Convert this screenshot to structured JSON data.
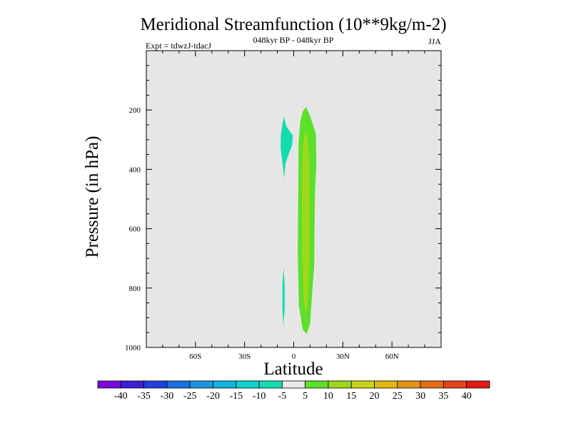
{
  "chart_data": {
    "type": "heatmap",
    "title": "Meridional Streamfunction (10**9kg/m-2)",
    "subtitle_left": "Expt = tdwzJ-tdacJ",
    "subtitle_center": "048kyr BP - 048kyr BP",
    "subtitle_right": "JJA",
    "xlabel": "Latitude",
    "ylabel": "Pressure (in hPa)",
    "xlim": [
      -90,
      90
    ],
    "ylim": [
      1000,
      0
    ],
    "y_reversed": true,
    "x_ticks": [
      {
        "value": -60,
        "label": "60S"
      },
      {
        "value": -30,
        "label": "30S"
      },
      {
        "value": 0,
        "label": "0"
      },
      {
        "value": 30,
        "label": "30N"
      },
      {
        "value": 60,
        "label": "60N"
      }
    ],
    "y_ticks": [
      {
        "value": 200,
        "label": "200"
      },
      {
        "value": 400,
        "label": "400"
      },
      {
        "value": 600,
        "label": "600"
      },
      {
        "value": 800,
        "label": "800"
      },
      {
        "value": 1000,
        "label": "1000"
      }
    ],
    "background_color": "#e6e6e6",
    "contour_levels": [
      -40,
      -35,
      -30,
      -25,
      -20,
      -15,
      -10,
      -5,
      5,
      10,
      15,
      20,
      25,
      30,
      35,
      40
    ],
    "colorbar_labels": [
      "-40",
      "-35",
      "-30",
      "-25",
      "-20",
      "-15",
      "-10",
      "-5",
      "5",
      "10",
      "15",
      "20",
      "25",
      "30",
      "35",
      "40"
    ],
    "colorbar_colors": [
      "#7a0ad8",
      "#3a1fd8",
      "#1f40e0",
      "#1c6fe0",
      "#1c95e0",
      "#12b5e0",
      "#10d2d0",
      "#12dcae",
      "#e8e8e8",
      "#5ce02a",
      "#9ed81c",
      "#c8d41a",
      "#e2b814",
      "#e29214",
      "#e46c14",
      "#e4441a",
      "#e41a14"
    ],
    "regions": [
      {
        "name": "streamfunction 5 to 10",
        "color": "#5ce02a",
        "points": [
          [
            7.5,
            190
          ],
          [
            10.0,
            220
          ],
          [
            13.5,
            280
          ],
          [
            13.8,
            380
          ],
          [
            13.0,
            480
          ],
          [
            12.7,
            600
          ],
          [
            12.5,
            720
          ],
          [
            11.0,
            840
          ],
          [
            10.0,
            920
          ],
          [
            8.0,
            955
          ],
          [
            5.5,
            940
          ],
          [
            3.2,
            860
          ],
          [
            2.5,
            680
          ],
          [
            2.8,
            480
          ],
          [
            3.0,
            310
          ],
          [
            4.0,
            240
          ],
          [
            5.5,
            205
          ]
        ]
      },
      {
        "name": "streamfunction 10 to 15",
        "color": "#9ed81c",
        "points": [
          [
            7.5,
            270
          ],
          [
            9.0,
            320
          ],
          [
            9.8,
            420
          ],
          [
            9.8,
            560
          ],
          [
            9.5,
            700
          ],
          [
            9.0,
            820
          ],
          [
            7.5,
            895
          ],
          [
            6.0,
            840
          ],
          [
            5.2,
            680
          ],
          [
            5.0,
            520
          ],
          [
            5.2,
            380
          ],
          [
            6.0,
            300
          ]
        ]
      },
      {
        "name": "streamfunction -10 to -5 upper",
        "color": "#12dcae",
        "points": [
          [
            -6.0,
            222
          ],
          [
            -4.5,
            255
          ],
          [
            -2.0,
            275
          ],
          [
            -0.5,
            285
          ],
          [
            -1.0,
            320
          ],
          [
            -3.5,
            355
          ],
          [
            -5.0,
            380
          ],
          [
            -5.8,
            430
          ],
          [
            -6.8,
            380
          ],
          [
            -8.0,
            325
          ],
          [
            -7.8,
            280
          ]
        ]
      },
      {
        "name": "streamfunction -10 to -5 lower",
        "color": "#12dcae",
        "points": [
          [
            -6.2,
            730
          ],
          [
            -5.5,
            790
          ],
          [
            -5.5,
            870
          ],
          [
            -6.3,
            930
          ],
          [
            -6.9,
            870
          ],
          [
            -6.9,
            790
          ]
        ]
      }
    ]
  }
}
